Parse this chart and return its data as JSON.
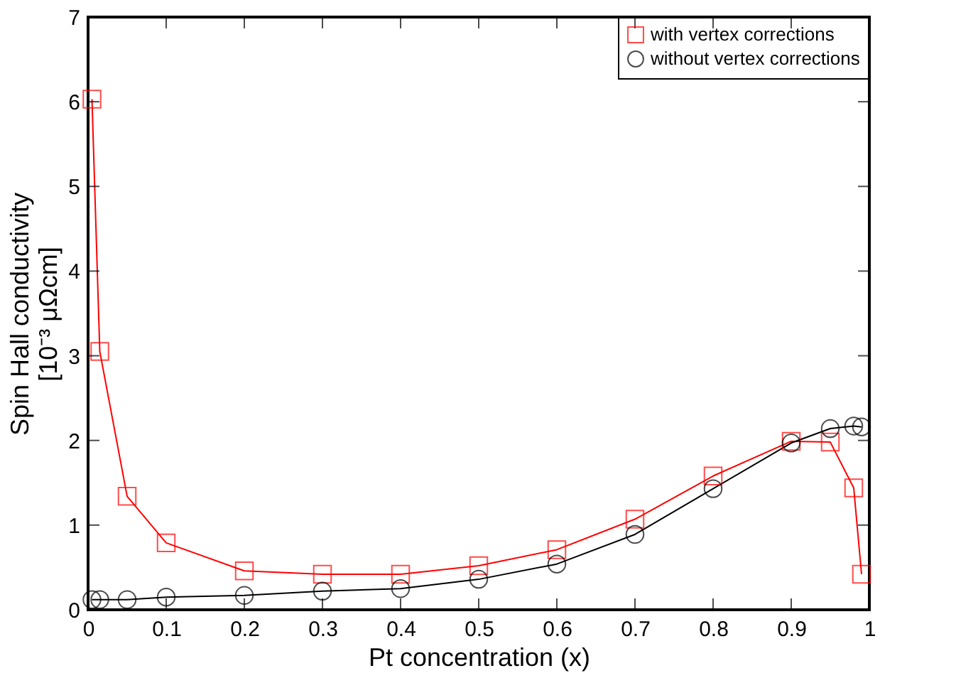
{
  "chart_data": {
    "type": "line",
    "xlabel": "Pt concentration (x)",
    "ylabel": "Spin Hall conductivity\n[10⁻³ μΩcm]",
    "x": [
      0.005,
      0.015,
      0.05,
      0.1,
      0.2,
      0.3,
      0.4,
      0.5,
      0.6,
      0.7,
      0.8,
      0.9,
      0.95,
      0.98,
      0.99
    ],
    "series": [
      {
        "name": "with vertex corrections",
        "color": "#ff0000",
        "marker": "square",
        "values": [
          6.03,
          3.05,
          1.34,
          0.79,
          0.46,
          0.42,
          0.42,
          0.52,
          0.71,
          1.07,
          1.58,
          1.99,
          1.98,
          1.44,
          0.42
        ]
      },
      {
        "name": "without vertex corrections",
        "color": "#000000",
        "marker": "circle",
        "values": [
          0.12,
          0.12,
          0.12,
          0.15,
          0.17,
          0.22,
          0.25,
          0.36,
          0.54,
          0.89,
          1.43,
          1.97,
          2.14,
          2.17,
          2.16
        ]
      }
    ],
    "xlim": [
      0,
      1
    ],
    "xticks": [
      0,
      0.1,
      0.2,
      0.3,
      0.4,
      0.5,
      0.6,
      0.7,
      0.8,
      0.9,
      1
    ],
    "ylim": [
      0,
      7
    ],
    "yticks": [
      0,
      1,
      2,
      3,
      4,
      5,
      6,
      7
    ],
    "grid": false,
    "legend": "top right",
    "line_style": "solid"
  }
}
